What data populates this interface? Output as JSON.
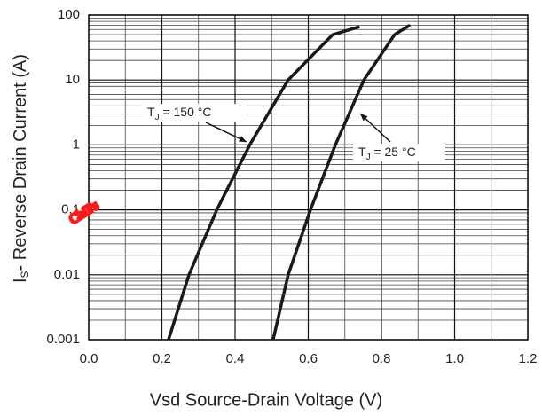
{
  "chart_data": {
    "type": "line",
    "x_label": "Vsd Source-Drain Voltage (V)",
    "y_label": {
      "main": "I",
      "sub": "S",
      "rest": "- Reverse Drain Current (A)"
    },
    "watermark": "ChiPs",
    "log_y": true,
    "grid": true,
    "minor_grid": true,
    "xlim": [
      0,
      1.2
    ],
    "ylim": [
      0.001,
      100
    ],
    "xticks": [
      {
        "value": 0,
        "label": "0.0"
      },
      0.2,
      0.4,
      0.6,
      0.8,
      {
        "value": 1,
        "label": "1.0"
      },
      1.2
    ],
    "yticks": [
      0.001,
      0.01,
      0.1,
      1,
      10,
      100
    ],
    "series": [
      {
        "name": {
          "main": "T",
          "sub": "J",
          "rest": " = 150 °C"
        },
        "color": "#1a1a1a",
        "x": [
          0.218,
          0.274,
          0.35,
          0.44,
          0.545,
          0.667,
          0.74
        ],
        "values": [
          0.001,
          0.01,
          0.1,
          1,
          10,
          50,
          66
        ]
      },
      {
        "name": {
          "main": "T",
          "sub": "J",
          "rest": " = 25 °C"
        },
        "color": "#1a1a1a",
        "x": [
          0.504,
          0.545,
          0.606,
          0.674,
          0.752,
          0.836,
          0.878
        ],
        "values": [
          0.001,
          0.01,
          0.1,
          1,
          10,
          50,
          70
        ]
      }
    ]
  }
}
